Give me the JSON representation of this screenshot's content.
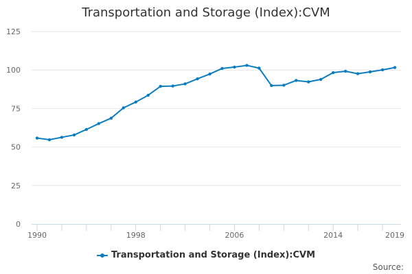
{
  "chart_data": {
    "type": "line",
    "title": "Transportation and Storage (Index):CVM",
    "x": [
      1990,
      1991,
      1992,
      1993,
      1994,
      1995,
      1996,
      1997,
      1998,
      1999,
      2000,
      2001,
      2002,
      2003,
      2004,
      2005,
      2006,
      2007,
      2008,
      2009,
      2010,
      2011,
      2012,
      2013,
      2014,
      2015,
      2016,
      2017,
      2018,
      2019
    ],
    "series": [
      {
        "name": "Transportation and Storage (Index):CVM",
        "values": [
          55.8,
          54.7,
          56.3,
          57.8,
          61.4,
          65.2,
          68.7,
          75.4,
          79.2,
          83.6,
          89.4,
          89.6,
          91.0,
          94.3,
          97.4,
          101.0,
          101.9,
          103.0,
          101.2,
          89.9,
          90.1,
          93.2,
          92.3,
          93.9,
          98.3,
          99.2,
          97.6,
          98.8,
          100.1,
          101.6
        ],
        "color": "#0b7cc1"
      }
    ],
    "ylim": [
      0,
      125
    ],
    "yticks": [
      "0",
      "25",
      "50",
      "75",
      "100",
      "125"
    ],
    "xtick_labels": [
      "1990",
      "1998",
      "2006",
      "2014",
      "2019"
    ],
    "grid": true,
    "legend": "bottom",
    "xlabel": "",
    "ylabel": ""
  },
  "source_label": "Source:"
}
